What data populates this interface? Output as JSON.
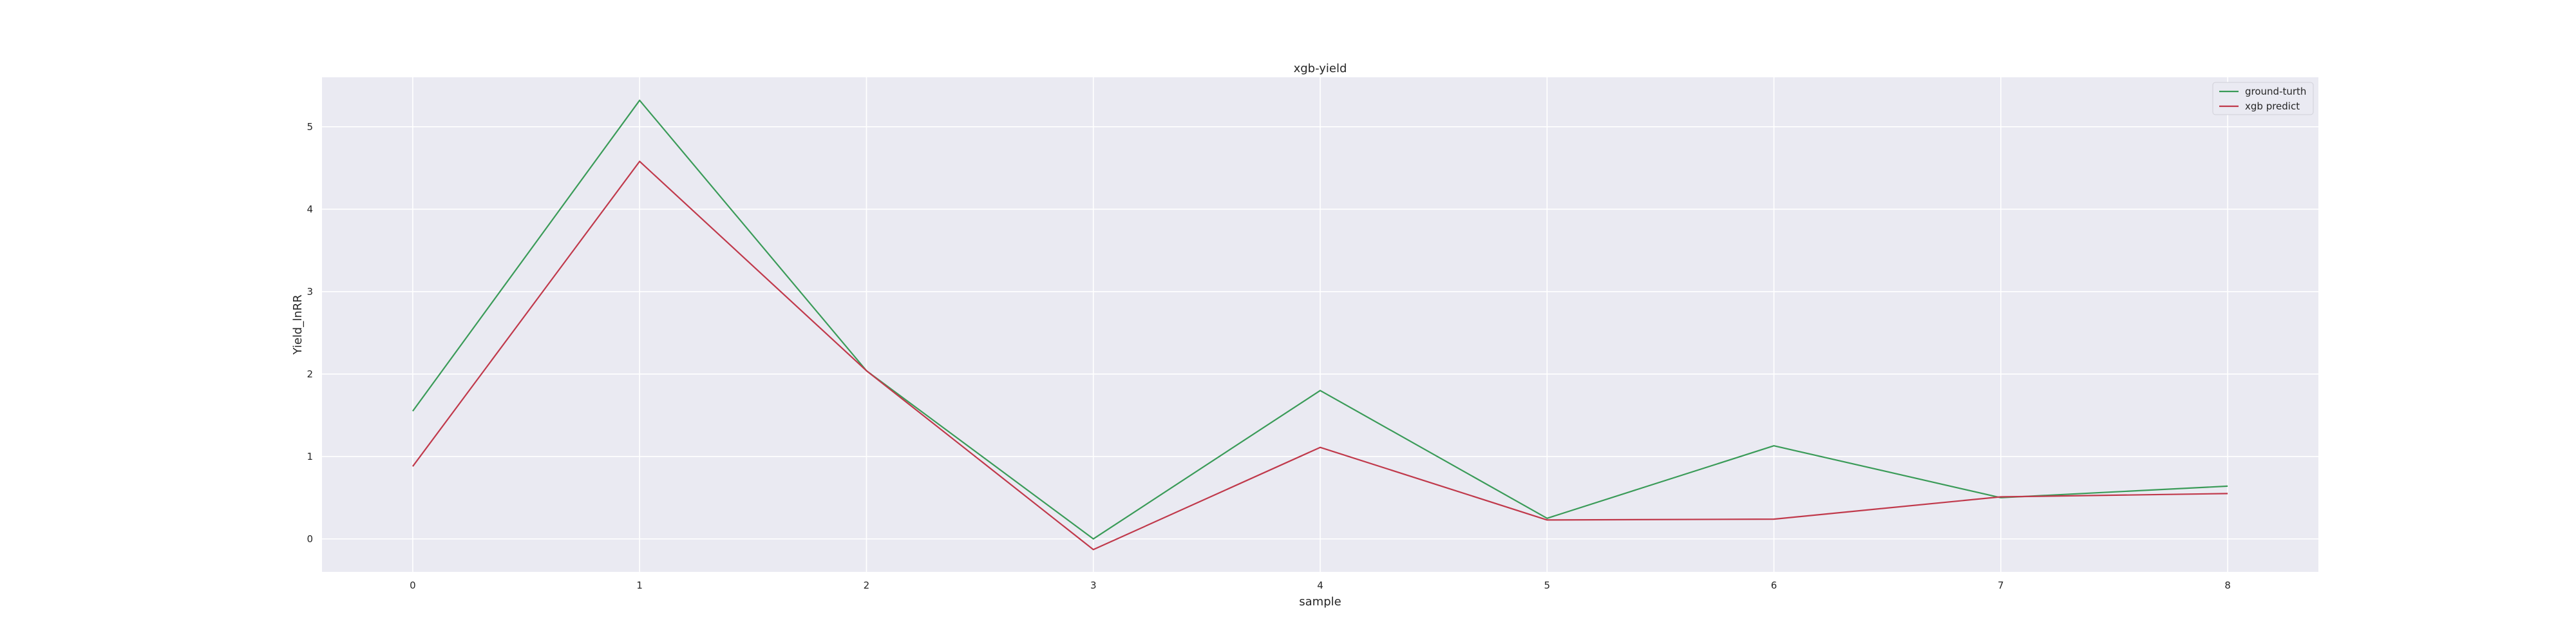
{
  "chart_data": {
    "type": "line",
    "title": "xgb-yield",
    "xlabel": "sample",
    "ylabel": "Yield_lnRR",
    "x": [
      0,
      1,
      2,
      3,
      4,
      5,
      6,
      7,
      8
    ],
    "xticks": [
      "0",
      "1",
      "2",
      "3",
      "4",
      "5",
      "6",
      "7",
      "8"
    ],
    "yticks": [
      "0",
      "1",
      "2",
      "3",
      "4",
      "5"
    ],
    "xlim": [
      -0.4,
      8.4
    ],
    "ylim": [
      -0.4,
      5.6
    ],
    "grid": true,
    "legend_position": "top-right",
    "background": "#eaeaf2",
    "series": [
      {
        "name": "ground-turth",
        "color": "#3a9b58",
        "values": [
          1.55,
          5.32,
          2.04,
          0.0,
          1.8,
          0.25,
          1.13,
          0.5,
          0.64
        ]
      },
      {
        "name": "xgb predict",
        "color": "#c0394b",
        "values": [
          0.88,
          4.58,
          2.04,
          -0.13,
          1.11,
          0.23,
          0.24,
          0.51,
          0.55
        ]
      }
    ]
  }
}
